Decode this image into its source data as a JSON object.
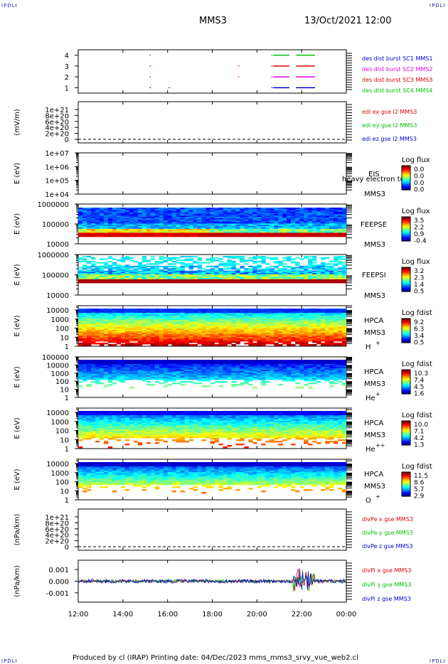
{
  "header": {
    "left_tag": "IPDLI",
    "right_tag": "IPDLI",
    "title": "MMS3",
    "datetime": "13/Oct/2021 12:00"
  },
  "footer": {
    "left_tag": "IPDLI",
    "right_tag": "IPDLI",
    "text": "Produced by cl (IRAP)    Printing date: 04/Dec/2023    mms_mms3_srvy_vue_web2.cl"
  },
  "colors": {
    "ink": "#000000",
    "red": "#e00000",
    "green": "#00c000",
    "blue": "#0000d0",
    "magenta": "#e000e0"
  },
  "chart_data": [
    {
      "type": "line",
      "panel": "burst-availability",
      "ylabel": "",
      "yticks": [
        "1",
        "2",
        "3",
        "4"
      ],
      "ylim": [
        0.5,
        4.5
      ],
      "legend": [
        {
          "name": "des dist burst SC1 MMS1",
          "color": "#0000d0"
        },
        {
          "name": "des dist burst SC2 MMS2",
          "color": "#e000e0"
        },
        {
          "name": "des dist burst SC3 MMS3",
          "color": "#e00000"
        },
        {
          "name": "des dist burst SC4 MMS4",
          "color": "#00c000"
        }
      ],
      "segments": [
        {
          "level": 4,
          "color": "#00c000",
          "spans": [
            [
              15.2,
              15.25
            ],
            [
              20.65,
              20.68
            ],
            [
              20.73,
              21.45
            ],
            [
              21.75,
              22.6
            ]
          ]
        },
        {
          "level": 3,
          "color": "#e00000",
          "spans": [
            [
              15.2,
              15.25
            ],
            [
              19.15,
              19.18
            ],
            [
              20.65,
              20.68
            ],
            [
              20.73,
              21.45
            ],
            [
              21.75,
              22.6
            ]
          ]
        },
        {
          "level": 2,
          "color": "#e000e0",
          "spans": [
            [
              15.2,
              15.25
            ],
            [
              19.15,
              19.18
            ],
            [
              20.65,
              20.68
            ],
            [
              20.73,
              21.45
            ],
            [
              21.75,
              22.6
            ]
          ]
        },
        {
          "level": 1,
          "color": "#0000d0",
          "spans": [
            [
              15.2,
              15.25
            ],
            [
              16.05,
              16.08
            ],
            [
              20.65,
              20.68
            ],
            [
              20.73,
              21.45
            ],
            [
              21.75,
              22.6
            ]
          ]
        }
      ]
    },
    {
      "type": "line",
      "panel": "edi-efield",
      "ylabel": "(mV/m)",
      "yticks": [
        "0",
        "2e+20",
        "4e+20",
        "6e+20",
        "8e+20",
        "1e+21"
      ],
      "ylim": [
        0,
        1e+21
      ],
      "legend": [
        {
          "name": "edi ex gse l2 MMS3",
          "color": "#e00000"
        },
        {
          "name": "edi ey gse l2 MMS3",
          "color": "#00c000"
        },
        {
          "name": "edi ez gse l2 MMS3",
          "color": "#0000d0"
        }
      ],
      "series": []
    },
    {
      "type": "heatmap",
      "panel": "eis",
      "ylabel": "E (eV)",
      "yticks": [
        "1e+04",
        "1e+05",
        "1e+06",
        "1e+07"
      ],
      "ylim": [
        10000,
        10000000
      ],
      "label": "EIS",
      "label_overlap": "heavy electron to",
      "spacecraft": "MMS3",
      "colorbar": {
        "title": "Log flux",
        "ticks": [
          "0.0",
          "0.0",
          "0.0",
          "0.0"
        ]
      }
    },
    {
      "type": "heatmap",
      "panel": "feeps-electron",
      "ylabel": "E (eV)",
      "yticks": [
        "10000",
        "100000",
        "1000000"
      ],
      "ylim": [
        10000,
        1000000
      ],
      "label": "FEEPSE",
      "spacecraft": "MMS3",
      "colorbar": {
        "title": "Log flux",
        "ticks": [
          "3.5",
          "2.2",
          "0.9",
          "-0.4"
        ]
      }
    },
    {
      "type": "heatmap",
      "panel": "feeps-ion",
      "ylabel": "E (eV)",
      "yticks": [
        "10000",
        "100000",
        "1000000"
      ],
      "ylim": [
        10000,
        1000000
      ],
      "label": "FEEPSI",
      "spacecraft": "MMS3",
      "colorbar": {
        "title": "Log flux",
        "ticks": [
          "3.2",
          "2.3",
          "1.4",
          "0.5"
        ]
      }
    },
    {
      "type": "heatmap",
      "panel": "hpca-h",
      "ylabel": "E (eV)",
      "yticks": [
        "1",
        "10",
        "100",
        "1000",
        "10000"
      ],
      "ylim": [
        1,
        30000
      ],
      "label": "HPCA",
      "spacecraft": "MMS3",
      "species": "H",
      "charge": "+",
      "colorbar": {
        "title": "Log fdist",
        "ticks": [
          "9.2",
          "6.3",
          "3.4",
          "0.5"
        ]
      }
    },
    {
      "type": "heatmap",
      "panel": "hpca-he",
      "ylabel": "E (eV)",
      "yticks": [
        "1",
        "10",
        "100",
        "1000",
        "10000",
        "100000"
      ],
      "ylim": [
        1,
        100000
      ],
      "label": "HPCA",
      "spacecraft": "MMS3",
      "species": "He",
      "charge": "+",
      "colorbar": {
        "title": "Log fdist",
        "ticks": [
          "10.3",
          "7.4",
          "4.5",
          "1.6"
        ]
      }
    },
    {
      "type": "heatmap",
      "panel": "hpca-hepp",
      "ylabel": "E (eV)",
      "yticks": [
        "1",
        "10",
        "100",
        "1000",
        "10000"
      ],
      "ylim": [
        1,
        30000
      ],
      "label": "HPCA",
      "spacecraft": "MMS3",
      "species": "He",
      "charge": "++",
      "colorbar": {
        "title": "Log fdist",
        "ticks": [
          "10.0",
          "7.1",
          "4.2",
          "1.3"
        ]
      }
    },
    {
      "type": "heatmap",
      "panel": "hpca-o",
      "ylabel": "E (eV)",
      "yticks": [
        "1",
        "10",
        "100",
        "1000",
        "10000"
      ],
      "ylim": [
        1,
        30000
      ],
      "label": "HPCA",
      "spacecraft": "MMS3",
      "species": "O",
      "charge": "+",
      "colorbar": {
        "title": "Log fdist",
        "ticks": [
          "11.5",
          "8.6",
          "5.7",
          "2.9"
        ]
      }
    },
    {
      "type": "line",
      "panel": "divpe",
      "ylabel": "(nPa/km)",
      "yticks": [
        "0",
        "2e+20",
        "4e+20",
        "6e+20",
        "8e+20",
        "1e+21"
      ],
      "ylim": [
        0,
        1e+21
      ],
      "legend": [
        {
          "name": "divPe x gse MMS3",
          "color": "#e00000"
        },
        {
          "name": "divPe y gse MMS3",
          "color": "#00c000"
        },
        {
          "name": "divPe z gse MMS3",
          "color": "#0000d0"
        }
      ],
      "series": []
    },
    {
      "type": "line",
      "panel": "divpi",
      "ylabel": "(nPa/km)",
      "yticks": [
        "-0.001",
        "0.000",
        "0.001"
      ],
      "ylim": [
        -0.0018,
        0.0018
      ],
      "legend": [
        {
          "name": "divPi x gse MMS3",
          "color": "#e00000"
        },
        {
          "name": "divPi y gse MMS3",
          "color": "#00c000"
        },
        {
          "name": "divPi z gse MMS3",
          "color": "#0000d0"
        }
      ],
      "noise_amplitude": 0.00012,
      "burst_window": [
        21.6,
        22.6
      ],
      "burst_amplitude": 0.0009
    }
  ],
  "time_axis": {
    "start": 12,
    "end": 24,
    "ticks": [
      12,
      14,
      16,
      18,
      20,
      22,
      24
    ],
    "tick_labels": [
      "12:00",
      "14:00",
      "16:00",
      "18:00",
      "20:00",
      "22:00",
      "00:00"
    ]
  }
}
